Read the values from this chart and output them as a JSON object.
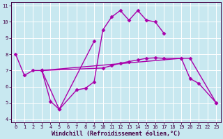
{
  "xlabel": "Windchill (Refroidissement éolien,°C)",
  "bg_color": "#c8e8f0",
  "line_color": "#aa00aa",
  "grid_color": "#ffffff",
  "xlim": [
    -0.5,
    23.5
  ],
  "ylim": [
    3.8,
    11.2
  ],
  "xticks": [
    0,
    1,
    2,
    3,
    4,
    5,
    6,
    7,
    8,
    9,
    10,
    11,
    12,
    13,
    14,
    15,
    16,
    17,
    18,
    19,
    20,
    21,
    22,
    23
  ],
  "yticks": [
    4,
    5,
    6,
    7,
    8,
    9,
    10,
    11
  ],
  "line1_x": [
    0,
    1,
    2,
    3,
    4,
    5,
    7,
    8,
    9,
    10,
    11,
    12,
    13,
    14,
    15,
    16,
    17
  ],
  "line1_y": [
    8.0,
    6.7,
    7.0,
    7.0,
    5.1,
    4.6,
    5.8,
    5.9,
    6.3,
    9.5,
    10.3,
    10.7,
    10.1,
    10.7,
    10.1,
    10.0,
    9.3
  ],
  "line2_x": [
    3,
    5,
    9
  ],
  "line2_y": [
    7.0,
    4.6,
    8.8
  ],
  "line3_x": [
    3,
    19,
    20,
    21,
    23
  ],
  "line3_y": [
    7.0,
    7.75,
    6.5,
    6.2,
    5.0
  ],
  "line4_x": [
    3,
    10,
    11,
    12,
    13,
    14,
    15,
    16,
    17,
    19,
    20,
    23
  ],
  "line4_y": [
    7.0,
    7.15,
    7.3,
    7.45,
    7.55,
    7.65,
    7.75,
    7.78,
    7.75,
    7.75,
    7.75,
    5.0
  ],
  "marker": "D",
  "markersize": 2.5,
  "linewidth": 1.0,
  "tick_fontsize": 5.0,
  "xlabel_fontsize": 6.0
}
